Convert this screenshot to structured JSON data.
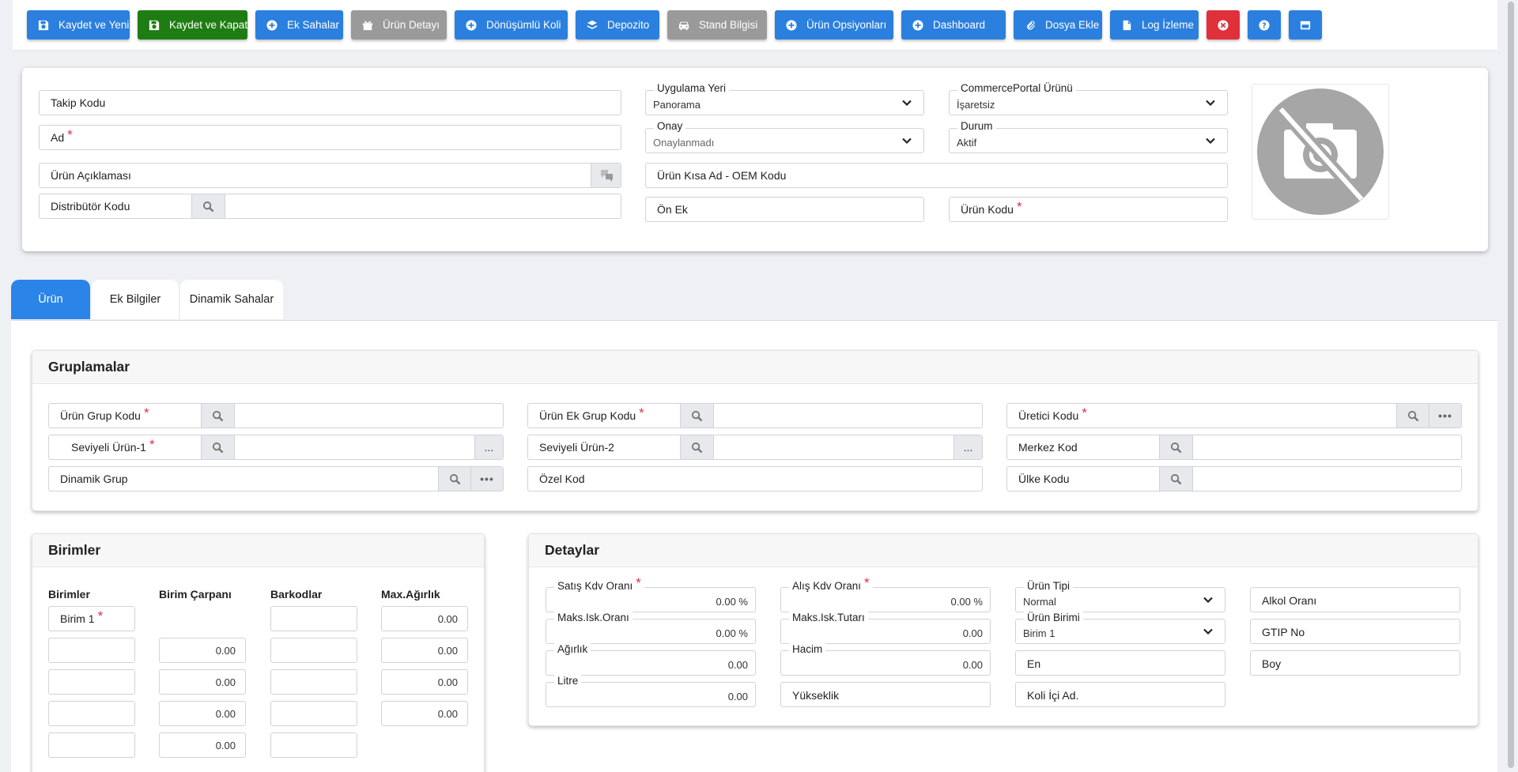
{
  "toolbar": {
    "save_new": "Kaydet ve Yeni",
    "save_close": "Kaydet ve Kapat",
    "extra_fields": "Ek Sahalar",
    "product_detail": "Ürün Detayı",
    "returnable_box": "Dönüşümlü Koli",
    "warehouse": "Depozito",
    "stand_info": "Stand Bilgisi",
    "product_options": "Ürün Opsiyonları",
    "dashboard": "Dashboard",
    "add_file": "Dosya Ekle",
    "log_view": "Log İzleme"
  },
  "header": {
    "tracking_code": "Takip Kodu",
    "name": "Ad",
    "description": "Ürün Açıklaması",
    "distributor_code": "Distribütör Kodu",
    "application_place_label": "Uygulama Yeri",
    "application_place_value": "Panorama",
    "commerce_portal_label": "CommercePortal Ürünü",
    "commerce_portal_value": "İşaretsiz",
    "approval_label": "Onay",
    "approval_value": "Onaylanmadı",
    "status_label": "Durum",
    "status_value": "Aktif",
    "short_name": "Ürün Kısa Ad - OEM Kodu",
    "prefix": "Ön Ek",
    "product_code": "Ürün Kodu"
  },
  "tabs": [
    "Ürün",
    "Ek Bilgiler",
    "Dinamik Sahalar"
  ],
  "groups": {
    "title": "Gruplamalar",
    "product_group_code": "Ürün Grup Kodu",
    "product_extra_group_code": "Ürün Ek Grup Kodu",
    "manufacturer_code": "Üretici Kodu",
    "level_product_1": "Seviyeli Ürün-1",
    "level_product_2": "Seviyeli Ürün-2",
    "center_code": "Merkez Kod",
    "dynamic_group": "Dinamik Grup",
    "special_code": "Özel Kod",
    "country_code": "Ülke Kodu",
    "dots": "..."
  },
  "units": {
    "title": "Birimler",
    "col_units": "Birimler",
    "col_multiplier": "Birim Çarpanı",
    "col_barcodes": "Barkodlar",
    "col_max_weight": "Max.Ağırlık",
    "unit1": "Birim 1",
    "zero": "0.00"
  },
  "details": {
    "title": "Detaylar",
    "sales_vat": "Satış Kdv Oranı",
    "sales_vat_val": "0.00 %",
    "purchase_vat": "Alış Kdv Oranı",
    "purchase_vat_val": "0.00 %",
    "product_type": "Ürün Tipi",
    "product_type_val": "Normal",
    "alcohol_rate": "Alkol Oranı",
    "max_disc_rate": "Maks.Isk.Oranı",
    "max_disc_rate_val": "0.00 %",
    "max_disc_amount": "Maks.Isk.Tutarı",
    "max_disc_amount_val": "0.00",
    "product_unit": "Ürün Birimi",
    "product_unit_val": "Birim 1",
    "gtip": "GTIP No",
    "weight": "Ağırlık",
    "weight_val": "0.00",
    "volume": "Hacim",
    "volume_val": "0.00",
    "width": "En",
    "length": "Boy",
    "litre": "Litre",
    "litre_val": "0.00",
    "height": "Yükseklik",
    "box_qty": "Koli İçi Ad."
  },
  "colors": {
    "primary": "#2b7fde",
    "success": "#1e7d12",
    "muted": "#9a9a9a",
    "danger": "#e0303c",
    "tab_active": "#2b84e8"
  }
}
